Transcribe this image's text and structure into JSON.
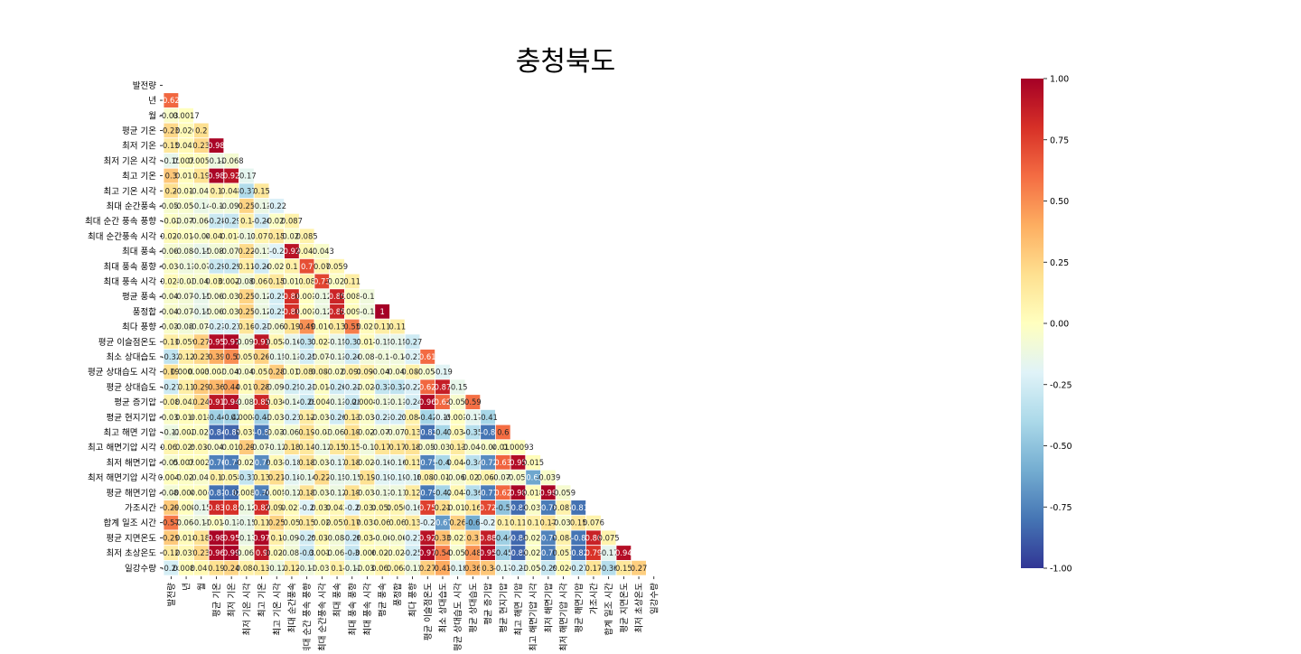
{
  "chart_data": {
    "type": "heatmap",
    "title": "충청북도",
    "labels": [
      "발전량",
      "년",
      "월",
      "평균 기온",
      "최저 기온",
      "최저 기온 시각",
      "최고 기온",
      "최고 기온 시각",
      "최대 순간풍속",
      "최대 순간 풍속 풍향",
      "최대 순간풍속 시각",
      "최대 풍속",
      "최대 풍속 풍향",
      "최대 풍속 시각",
      "평균 풍속",
      "풍정합",
      "최다 풍향",
      "평균 이슬점온도",
      "최소 상대습도",
      "평균 상대습도 시각",
      "평균 상대습도",
      "평균 증기압",
      "평균 현지기압",
      "최고 해면 기압",
      "최고 해면기압 시각",
      "최저 해면기압",
      "최저 해면기압 시각",
      "평균 해면기압",
      "가조시간",
      "합계 일조 시간",
      "평균 지면온도",
      "최저 초상온도",
      "일강수량"
    ],
    "rows": [
      [],
      [
        "0.62"
      ],
      [
        "-0.037",
        "0.0017"
      ],
      [
        "0.23",
        "0.026",
        "0.2"
      ],
      [
        "0.15",
        "0.041",
        "0.23",
        "0.98"
      ],
      [
        "-0.15",
        "0.0071",
        "0.0055",
        "-0.12",
        "-0.068"
      ],
      [
        "0.3",
        "0.011",
        "0.19",
        "0.98",
        "0.92",
        "-0.17"
      ],
      [
        "0.2",
        "-0.011",
        "-0.041",
        "0.1",
        "0.045",
        "-0.37",
        "0.15"
      ],
      [
        "-0.053",
        "-0.054",
        "-0.14",
        "-0.1",
        "-0.091",
        "0.25",
        "-0.13",
        "-0.22"
      ],
      [
        "-0.02",
        "-0.074",
        "-0.066",
        "-0.28",
        "-0.29",
        "0.1",
        "-0.26",
        "-0.023",
        "0.087"
      ],
      [
        "0.024",
        "-0.015",
        "-0.04",
        "0.043",
        "0.011",
        "-0.11",
        "0.073",
        "0.15",
        "-0.027",
        "0.085"
      ],
      [
        "-0.064",
        "-0.089",
        "-0.15",
        "-0.084",
        "-0.078",
        "0.22",
        "-0.11",
        "-0.2",
        "0.92",
        "0.042",
        "-0.043"
      ],
      [
        "-0.032",
        "-0.11",
        "-0.07",
        "-0.29",
        "-0.29",
        "0.11",
        "-0.26",
        "-0.026",
        "0.1",
        "0.7",
        "0.07",
        "0.059"
      ],
      [
        "0.025",
        "-0.03",
        "-0.042",
        "0.035",
        "0.0027",
        "-0.088",
        "0.067",
        "0.15",
        "-0.017",
        "0.08",
        "0.73",
        "-0.022",
        "0.11"
      ],
      [
        "-0.047",
        "-0.078",
        "-0.15",
        "-0.066",
        "-0.035",
        "0.25",
        "-0.12",
        "-0.25",
        "0.81",
        "-0.0016",
        "-0.12",
        "0.85",
        "0.0085",
        "-0.1"
      ],
      [
        "-0.046",
        "-0.078",
        "-0.15",
        "-0.066",
        "-0.035",
        "0.25",
        "-0.12",
        "-0.25",
        "0.81",
        "-0.0011",
        "-0.12",
        "0.85",
        "0.0091",
        "-0.1",
        "1"
      ],
      [
        "-0.037",
        "-0.089",
        "-0.072",
        "-0.23",
        "-0.23",
        "0.16",
        "-0.23",
        "-0.068",
        "0.19",
        "0.49",
        "0.016",
        "0.13",
        "0.55",
        "0.023",
        "0.11",
        "0.11"
      ],
      [
        "0.11",
        "0.059",
        "0.27",
        "0.95",
        "0.97",
        "-0.095",
        "0.91",
        "0.052",
        "-0.16",
        "-0.31",
        "0.027",
        "-0.15",
        "-0.31",
        "0.017",
        "-0.15",
        "-0.15",
        "-0.27"
      ],
      [
        "-0.32",
        "0.12",
        "0.23",
        "0.39",
        "0.5",
        "0.051",
        "0.26",
        "-0.15",
        "-0.13",
        "-0.25",
        "-0.072",
        "-0.13",
        "-0.26",
        "-0.086",
        "-0.1",
        "-0.1",
        "-0.21",
        "0.61"
      ],
      [
        "0.19",
        "0.00025",
        "0.0031",
        "-0.0035",
        "-0.044",
        "-0.042",
        "0.053",
        "0.28",
        "-0.013",
        "0.086",
        "0.083",
        "-0.027",
        "0.098",
        "0.094",
        "-0.043",
        "-0.043",
        "0.085",
        "-0.051",
        "-0.19"
      ],
      [
        "-0.27",
        "0.11",
        "0.29",
        "0.36",
        "0.44",
        "0.017",
        "0.28",
        "-0.091",
        "-0.25",
        "-0.21",
        "-0.015",
        "-0.26",
        "-0.22",
        "-0.027",
        "-0.31",
        "-0.32",
        "-0.22",
        "0.62",
        "0.87",
        "-0.15"
      ],
      [
        "0.08",
        "0.042",
        "0.24",
        "0.91",
        "0.94",
        "-0.085",
        "0.85",
        "0.036",
        "-0.14",
        "-0.28",
        "0.0044",
        "-0.13",
        "-0.28",
        "0.00086",
        "-0.11",
        "-0.11",
        "-0.24",
        "0.96",
        "0.62",
        "-0.052",
        "0.59"
      ],
      [
        "-0.032",
        "0.016",
        "0.015",
        "-0.44",
        "-0.42",
        "0.00024",
        "-0.43",
        "-0.033",
        "-0.23",
        "0.12",
        "-0.033",
        "-0.26",
        "0.13",
        "-0.035",
        "-0.23",
        "-0.23",
        "0.084",
        "-0.42",
        "-0.19",
        "-0.0019",
        "-0.17",
        "-0.41"
      ],
      [
        "-0.12",
        "-0.0026",
        "-0.021",
        "-0.84",
        "-0.85",
        "0.035",
        "-0.8",
        "-0.031",
        "-0.062",
        "0.19",
        "-0.03",
        "-0.067",
        "0.19",
        "-0.023",
        "-0.073",
        "-0.073",
        "0.13",
        "-0.82",
        "-0.41",
        "0.034",
        "-0.35",
        "-0.8",
        "0.6"
      ],
      [
        "0.063",
        "0.029",
        "0.036",
        "-0.047",
        "-0.018",
        "0.29",
        "-0.072",
        "-0.12",
        "0.18",
        "0.14",
        "-0.12",
        "0.15",
        "0.15",
        "-0.1",
        "0.17",
        "0.17",
        "0.18",
        "-0.051",
        "-0.039",
        "0.13",
        "-0.043",
        "-0.04",
        "0.011",
        "0.00093"
      ],
      [
        "-0.058",
        "0.0072",
        "0.0029",
        "-0.76",
        "-0.77",
        "-0.026",
        "-0.72",
        "0.033",
        "-0.18",
        "0.18",
        "-0.031",
        "-0.17",
        "0.18",
        "-0.027",
        "-0.16",
        "-0.16",
        "0.11",
        "-0.75",
        "-0.4",
        "0.044",
        "-0.34",
        "-0.72",
        "0.63",
        "0.95",
        "0.015"
      ],
      [
        "0.0047",
        "-0.021",
        "-0.046",
        "0.1",
        "0.055",
        "-0.31",
        "0.13",
        "0.21",
        "-0.18",
        "-0.14",
        "0.22",
        "-0.15",
        "-0.15",
        "0.19",
        "-0.19",
        "-0.19",
        "-0.18",
        "0.089",
        "-0.014",
        "-0.066",
        "0.023",
        "0.068",
        "-0.074",
        "-0.053",
        "-0.62",
        "-0.039"
      ],
      [
        "-0.081",
        "-0.0047",
        "0.004",
        "-0.81",
        "-0.82",
        "0.0085",
        "-0.76",
        "-0.0051",
        "-0.12",
        "0.18",
        "-0.038",
        "-0.12",
        "0.19",
        "-0.031",
        "-0.11",
        "-0.11",
        "0.12",
        "-0.79",
        "-0.42",
        "0.047",
        "-0.36",
        "-0.77",
        "0.62",
        "0.98",
        "0.018",
        "0.98",
        "-0.059"
      ],
      [
        "0.29",
        "-0.0006",
        "-0.15",
        "0.83",
        "0.8",
        "-0.12",
        "0.82",
        "0.094",
        "0.023",
        "-0.2",
        "0.038",
        "0.042",
        "-0.2",
        "0.038",
        "0.058",
        "0.059",
        "-0.16",
        "0.75",
        "0.21",
        "-0.013",
        "0.16",
        "0.72",
        "-0.5",
        "-0.83",
        "-0.032",
        "-0.78",
        "0.085",
        "-0.81"
      ],
      [
        "0.57",
        "-0.069",
        "-0.11",
        "-0.014",
        "-0.13",
        "-0.15",
        "0.11",
        "0.25",
        "0.05",
        "0.15",
        "0.02",
        "0.055",
        "0.17",
        "0.038",
        "0.06",
        "0.06",
        "0.13",
        "-0.2",
        "-0.67",
        "0.26",
        "-0.6",
        "-0.2",
        "0.1",
        "0.11",
        "0.1",
        "0.17",
        "-0.036",
        "0.15",
        "0.076"
      ],
      [
        "0.29",
        "0.018",
        "0.18",
        "0.98",
        "0.95",
        "-0.13",
        "0.97",
        "0.1",
        "-0.098",
        "-0.25",
        "0.039",
        "-0.081",
        "-0.26",
        "0.034",
        "-0.06",
        "-0.06",
        "-0.21",
        "0.92",
        "0.33",
        "0.022",
        "0.3",
        "0.88",
        "-0.44",
        "-0.84",
        "-0.024",
        "-0.75",
        "0.084",
        "-0.8",
        "0.86",
        "0.075"
      ],
      [
        "0.12",
        "0.035",
        "0.23",
        "0.96",
        "0.99",
        "-0.068",
        "0.9",
        "0.025",
        "-0.081",
        "-0.3",
        "0.0012",
        "-0.064",
        "-0.3",
        "-0.0065",
        "0.022",
        "-0.022",
        "-0.25",
        "0.97",
        "0.54",
        "-0.056",
        "0.48",
        "0.95",
        "-0.45",
        "-0.85",
        "-0.023",
        "-0.77",
        "0.053",
        "-0.82",
        "0.79",
        "-0.17",
        "0.94"
      ],
      [
        "-0.24",
        "0.0083",
        "0.041",
        "0.19",
        "0.24",
        "0.084",
        "0.13",
        "-0.12",
        "0.12",
        "-0.11",
        "-0.035",
        "0.1",
        "-0.12",
        "-0.033",
        "0.062",
        "0.062",
        "-0.11",
        "0.27",
        "0.41",
        "-0.18",
        "0.36",
        "0.3",
        "-0.17",
        "-0.23",
        "-0.054",
        "-0.29",
        "0.026",
        "-0.27",
        "0.17",
        "-0.36",
        "0.15",
        "0.27"
      ]
    ],
    "colorbar": {
      "min": -1.0,
      "max": 1.0,
      "ticks": [
        "1.00",
        "0.75",
        "0.50",
        "0.25",
        "0.00",
        "-0.25",
        "-0.50",
        "-0.75",
        "-1.00"
      ]
    },
    "colormap": [
      "#313695",
      "#4575b4",
      "#74add1",
      "#abd9e9",
      "#e0f3f8",
      "#ffffbf",
      "#fee090",
      "#fdae61",
      "#f46d43",
      "#d73027",
      "#a50026"
    ],
    "grid_line_color": "#ffffff"
  }
}
